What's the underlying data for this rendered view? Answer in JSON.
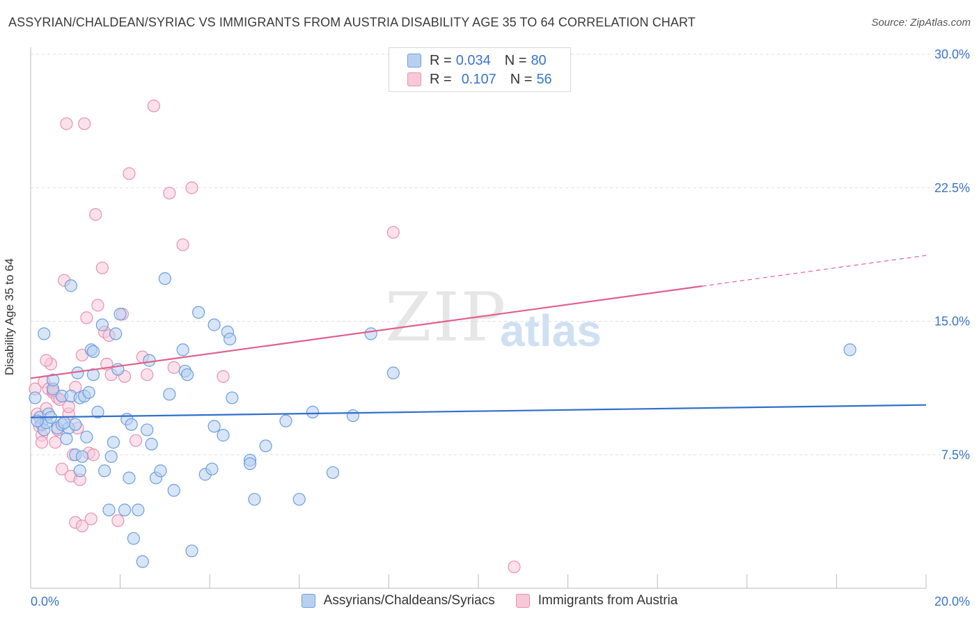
{
  "title": "ASSYRIAN/CHALDEAN/SYRIAC VS IMMIGRANTS FROM AUSTRIA DISABILITY AGE 35 TO 64 CORRELATION CHART",
  "source": "Source: ZipAtlas.com",
  "watermark": {
    "zip": "ZIP",
    "atlas": "atlas"
  },
  "legend": {
    "series1": {
      "r_label": "R =",
      "r_value": "0.034",
      "n_label": "N =",
      "n_value": "80"
    },
    "series2": {
      "r_label": "R =",
      "r_value": "0.107",
      "n_label": "N =",
      "n_value": "56"
    }
  },
  "bottom_legend": {
    "series1": "Assyrians/Chaldeans/Syriacs",
    "series2": "Immigrants from Austria"
  },
  "colors": {
    "series1_fill": "#b8d0f0",
    "series1_stroke": "#6a9ee0",
    "series1_line": "#2f6fcc",
    "series2_fill": "#f8c8d8",
    "series2_stroke": "#e890b0",
    "series2_line": "#e0608a",
    "axis_text": "#3a74c9"
  },
  "chart_data": {
    "type": "scatter",
    "title": "ASSYRIAN/CHALDEAN/SYRIAC VS IMMIGRANTS FROM AUSTRIA DISABILITY AGE 35 TO 64 CORRELATION CHART",
    "xlabel": "",
    "ylabel": "Disability Age 35 to 64",
    "xlim": [
      0,
      20
    ],
    "ylim": [
      0,
      30
    ],
    "x_tick_labels": [
      "0.0%",
      "20.0%"
    ],
    "y_ticks": [
      7.5,
      15.0,
      22.5,
      30.0
    ],
    "y_tick_labels": [
      "7.5%",
      "15.0%",
      "22.5%",
      "30.0%"
    ],
    "grid": true,
    "legend_position": "top-center",
    "series": [
      {
        "name": "Assyrians/Chaldeans/Syriacs",
        "trend": {
          "x": [
            0,
            20
          ],
          "y": [
            9.6,
            10.3
          ],
          "solid_to": 20
        },
        "points": [
          [
            0.1,
            10.7
          ],
          [
            0.2,
            9.6
          ],
          [
            0.25,
            9.2
          ],
          [
            0.3,
            8.9
          ],
          [
            0.35,
            9.3
          ],
          [
            0.4,
            9.8
          ],
          [
            0.5,
            11.2
          ],
          [
            0.6,
            9.0
          ],
          [
            0.7,
            9.2
          ],
          [
            0.7,
            10.8
          ],
          [
            0.3,
            14.3
          ],
          [
            0.5,
            11.7
          ],
          [
            0.85,
            9.0
          ],
          [
            0.8,
            8.4
          ],
          [
            0.9,
            10.8
          ],
          [
            1.0,
            7.5
          ],
          [
            1.05,
            12.1
          ],
          [
            1.1,
            6.6
          ],
          [
            1.1,
            10.7
          ],
          [
            1.15,
            7.4
          ],
          [
            1.2,
            10.8
          ],
          [
            1.25,
            8.5
          ],
          [
            1.3,
            11.0
          ],
          [
            1.35,
            13.4
          ],
          [
            1.4,
            12.0
          ],
          [
            1.5,
            9.9
          ],
          [
            1.6,
            14.8
          ],
          [
            1.65,
            6.6
          ],
          [
            1.75,
            4.4
          ],
          [
            1.8,
            7.4
          ],
          [
            1.85,
            8.2
          ],
          [
            1.9,
            14.3
          ],
          [
            1.95,
            12.3
          ],
          [
            2.0,
            15.4
          ],
          [
            2.1,
            4.4
          ],
          [
            2.15,
            9.5
          ],
          [
            2.2,
            6.2
          ],
          [
            2.25,
            9.2
          ],
          [
            2.3,
            2.8
          ],
          [
            2.4,
            4.4
          ],
          [
            2.5,
            1.5
          ],
          [
            2.6,
            8.9
          ],
          [
            2.65,
            12.8
          ],
          [
            2.7,
            8.1
          ],
          [
            2.8,
            6.2
          ],
          [
            2.9,
            6.6
          ],
          [
            3.0,
            17.4
          ],
          [
            3.1,
            10.9
          ],
          [
            3.2,
            5.5
          ],
          [
            3.4,
            13.4
          ],
          [
            3.45,
            12.2
          ],
          [
            3.5,
            12.0
          ],
          [
            3.6,
            2.1
          ],
          [
            3.75,
            15.5
          ],
          [
            3.9,
            6.4
          ],
          [
            4.05,
            6.7
          ],
          [
            4.1,
            9.1
          ],
          [
            4.1,
            14.8
          ],
          [
            4.3,
            8.6
          ],
          [
            4.4,
            14.4
          ],
          [
            4.45,
            14.0
          ],
          [
            4.5,
            10.7
          ],
          [
            4.9,
            7.2
          ],
          [
            4.9,
            7.0
          ],
          [
            5.0,
            5.0
          ],
          [
            5.25,
            8.0
          ],
          [
            5.7,
            9.4
          ],
          [
            6.0,
            5.0
          ],
          [
            6.3,
            9.9
          ],
          [
            6.75,
            6.5
          ],
          [
            7.2,
            9.7
          ],
          [
            7.6,
            14.3
          ],
          [
            8.1,
            12.1
          ],
          [
            18.3,
            13.4
          ],
          [
            0.9,
            17.0
          ],
          [
            1.4,
            13.3
          ],
          [
            0.15,
            9.4
          ],
          [
            0.45,
            9.6
          ],
          [
            0.75,
            9.3
          ],
          [
            1.0,
            9.2
          ]
        ]
      },
      {
        "name": "Immigrants from Austria",
        "trend": {
          "x": [
            0,
            20
          ],
          "y": [
            11.8,
            18.7
          ],
          "solid_to": 15.0
        },
        "points": [
          [
            0.1,
            11.2
          ],
          [
            0.15,
            9.8
          ],
          [
            0.2,
            9.1
          ],
          [
            0.25,
            8.6
          ],
          [
            0.3,
            11.6
          ],
          [
            0.35,
            10.1
          ],
          [
            0.4,
            11.2
          ],
          [
            0.45,
            12.6
          ],
          [
            0.5,
            11.0
          ],
          [
            0.55,
            8.2
          ],
          [
            0.6,
            10.7
          ],
          [
            0.65,
            10.6
          ],
          [
            0.7,
            6.7
          ],
          [
            0.75,
            17.3
          ],
          [
            0.8,
            26.1
          ],
          [
            0.85,
            9.8
          ],
          [
            0.9,
            6.3
          ],
          [
            0.95,
            7.5
          ],
          [
            1.0,
            3.7
          ],
          [
            1.05,
            9.0
          ],
          [
            1.1,
            6.1
          ],
          [
            1.15,
            3.5
          ],
          [
            1.2,
            26.1
          ],
          [
            1.25,
            15.2
          ],
          [
            1.3,
            7.6
          ],
          [
            1.35,
            3.9
          ],
          [
            1.4,
            7.5
          ],
          [
            1.45,
            21.0
          ],
          [
            1.5,
            15.9
          ],
          [
            1.6,
            18.0
          ],
          [
            1.65,
            14.4
          ],
          [
            1.7,
            12.6
          ],
          [
            1.75,
            14.2
          ],
          [
            1.8,
            12.0
          ],
          [
            1.95,
            3.8
          ],
          [
            2.05,
            15.4
          ],
          [
            2.1,
            11.9
          ],
          [
            2.2,
            23.3
          ],
          [
            2.35,
            8.3
          ],
          [
            2.5,
            13.0
          ],
          [
            2.6,
            12.0
          ],
          [
            2.75,
            27.1
          ],
          [
            3.1,
            22.2
          ],
          [
            3.2,
            12.4
          ],
          [
            3.4,
            19.3
          ],
          [
            3.6,
            22.5
          ],
          [
            4.3,
            11.9
          ],
          [
            8.1,
            20.0
          ],
          [
            10.8,
            1.2
          ],
          [
            0.6,
            8.9
          ],
          [
            0.35,
            12.8
          ],
          [
            1.15,
            13.1
          ],
          [
            0.5,
            11.1
          ],
          [
            1.0,
            11.3
          ],
          [
            0.85,
            10.2
          ],
          [
            0.25,
            8.2
          ]
        ]
      }
    ]
  }
}
